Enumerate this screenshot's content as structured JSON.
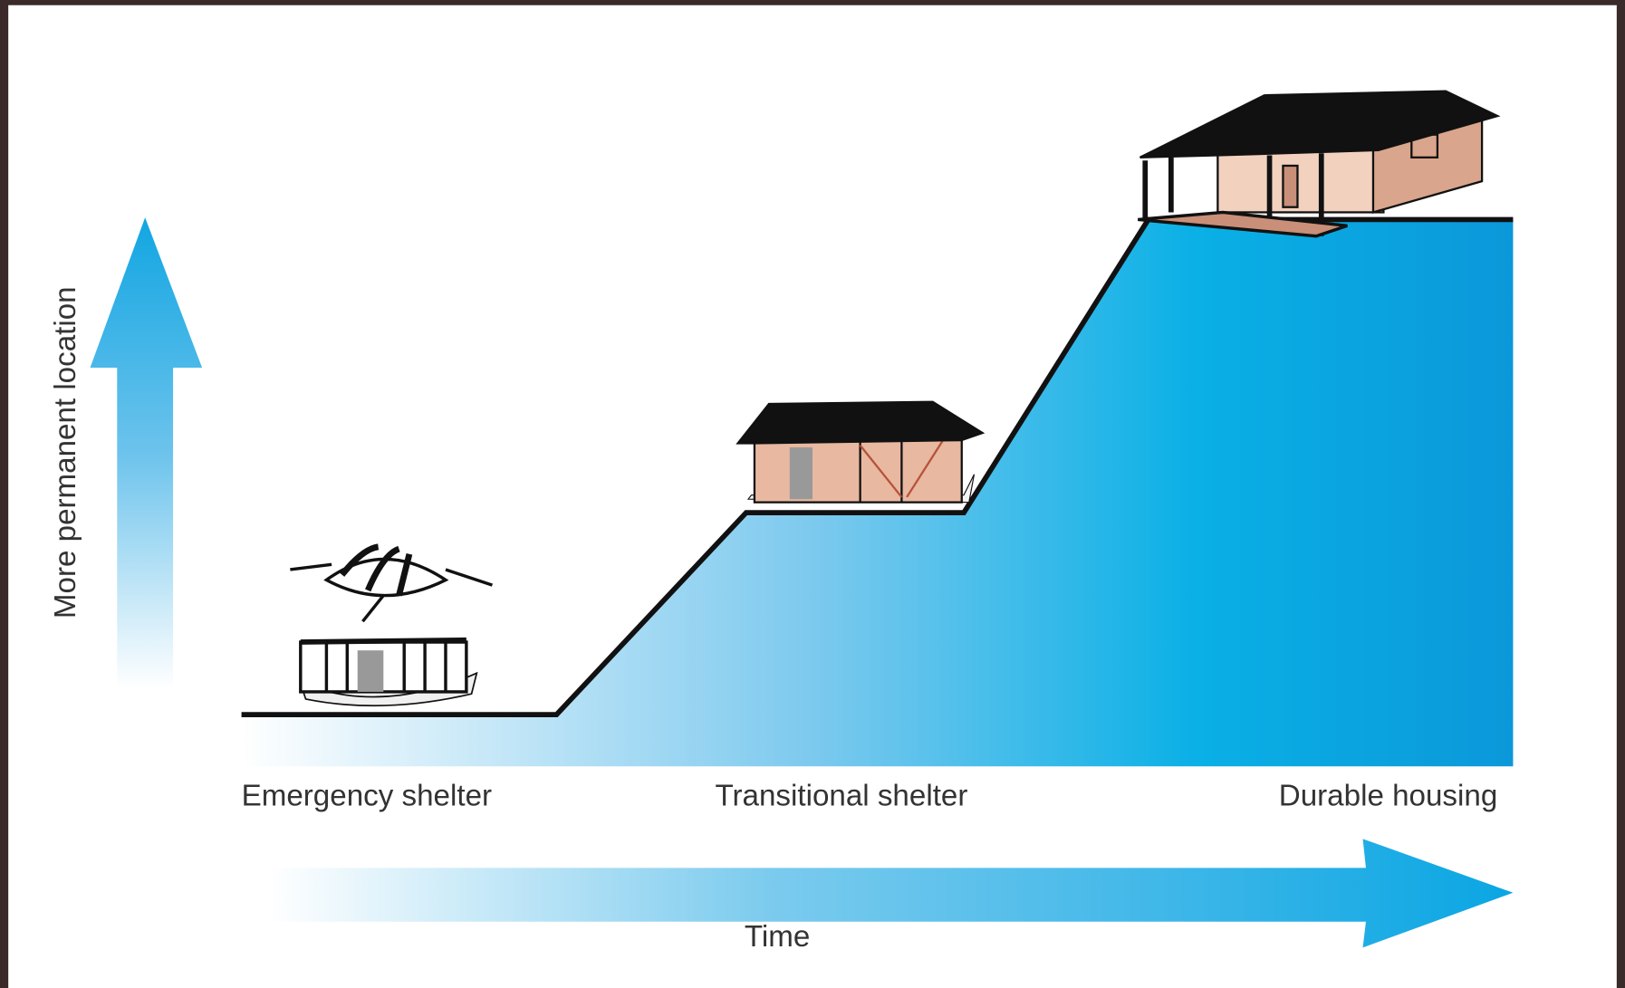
{
  "axes": {
    "vertical": "More permanent location",
    "horizontal": "Time"
  },
  "stages": [
    {
      "label": "Emergency shelter"
    },
    {
      "label": "Transitional shelter"
    },
    {
      "label": "Durable housing"
    }
  ]
}
